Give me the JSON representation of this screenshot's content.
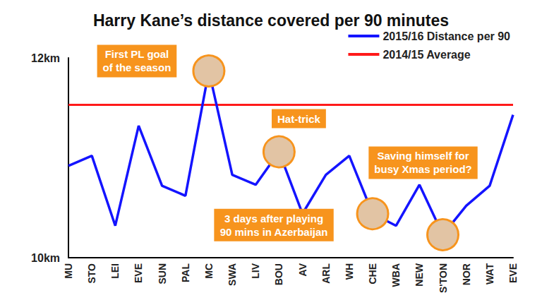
{
  "chart_data": {
    "type": "line",
    "title": "Harry Kane’s distance covered per 90 minutes",
    "categories": [
      "MU",
      "STO",
      "LEI",
      "EVE",
      "SUN",
      "PAL",
      "MC",
      "SWA",
      "LIV",
      "BOU",
      "AV",
      "ARL",
      "WH",
      "CHE",
      "WBA",
      "NEW",
      "S'TON",
      "NOR",
      "WAT",
      "EVE"
    ],
    "series": [
      {
        "name": "2015/16 Distance per 90",
        "color": "#1414ff",
        "values": [
          10.92,
          11.02,
          10.32,
          11.32,
          10.72,
          10.62,
          11.87,
          10.83,
          10.73,
          11.06,
          10.44,
          10.83,
          11.02,
          10.44,
          10.32,
          10.73,
          10.23,
          10.52,
          10.72,
          11.43
        ]
      },
      {
        "name": "2014/15 Average",
        "color": "#ff1a1a",
        "values": [
          11.53,
          11.53,
          11.53,
          11.53,
          11.53,
          11.53,
          11.53,
          11.53,
          11.53,
          11.53,
          11.53,
          11.53,
          11.53,
          11.53,
          11.53,
          11.53,
          11.53,
          11.53,
          11.53,
          11.53
        ]
      }
    ],
    "ylim": [
      10,
      12
    ],
    "yticks": [
      {
        "value": 10,
        "label": "10km"
      },
      {
        "value": 12,
        "label": "12km"
      }
    ],
    "grid": false,
    "legend": "top-right",
    "annotations": [
      {
        "text": "First PL goal\nof the season",
        "category": "MC"
      },
      {
        "text": "Hat-trick",
        "category": "BOU"
      },
      {
        "text": "3 days after playing\n90 mins in Azerbaijan",
        "category": "CHE"
      },
      {
        "text": "Saving himself for\nbusy Xmas period?",
        "category": "S'TON"
      }
    ]
  }
}
